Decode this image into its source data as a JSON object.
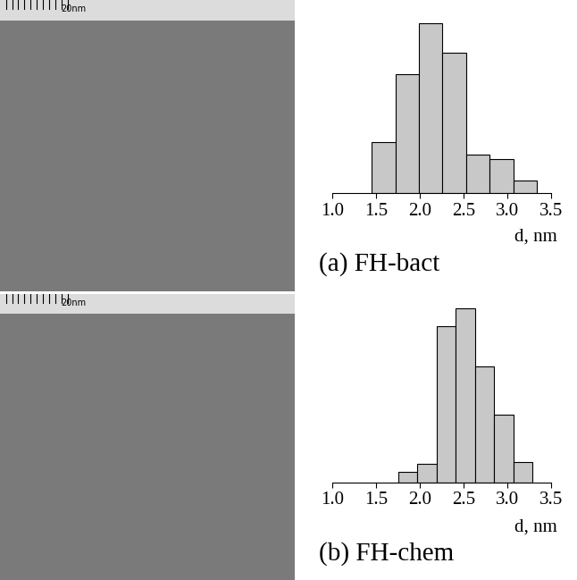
{
  "chart_data": [
    {
      "type": "histogram",
      "title": "(a) FH-bact",
      "xlabel": "d, nm",
      "annotations": [
        "20nm"
      ],
      "bins": [
        1.45,
        1.72,
        1.99,
        2.26,
        2.53,
        2.8,
        3.07,
        3.34
      ],
      "counts": [
        12,
        28,
        40,
        33,
        9,
        8,
        3
      ],
      "color": "#c8c8c8",
      "xlim": [
        1.0,
        3.5
      ],
      "xticks": [
        {
          "value": 1.0,
          "label": "1.0"
        },
        {
          "value": 1.5,
          "label": "1.5"
        },
        {
          "value": 2.0,
          "label": "2.0"
        },
        {
          "value": 2.5,
          "label": "2.5"
        },
        {
          "value": 3.0,
          "label": "3.0"
        },
        {
          "value": 3.5,
          "label": "3.5"
        }
      ],
      "ylim": [
        0,
        41
      ],
      "tick_labels": "x",
      "grid": false
    },
    {
      "type": "histogram",
      "title": "(b) FH-chem",
      "xlabel": "d, nm",
      "annotations": [
        "20nm"
      ],
      "bins": [
        1.75,
        1.97,
        2.19,
        2.41,
        2.63,
        2.85,
        3.07,
        3.29
      ],
      "counts": [
        6,
        11,
        90,
        100,
        67,
        39,
        12
      ],
      "color": "#c8c8c8",
      "xlim": [
        1.0,
        3.5
      ],
      "xticks": [
        {
          "value": 1.0,
          "label": "1.0"
        },
        {
          "value": 1.5,
          "label": "1.5"
        },
        {
          "value": 2.0,
          "label": "2.0"
        },
        {
          "value": 2.5,
          "label": "2.5"
        },
        {
          "value": 3.0,
          "label": "3.0"
        },
        {
          "value": 3.5,
          "label": "3.5"
        }
      ],
      "ylim": [
        0,
        104
      ],
      "tick_labels": "x",
      "grid": false
    }
  ]
}
